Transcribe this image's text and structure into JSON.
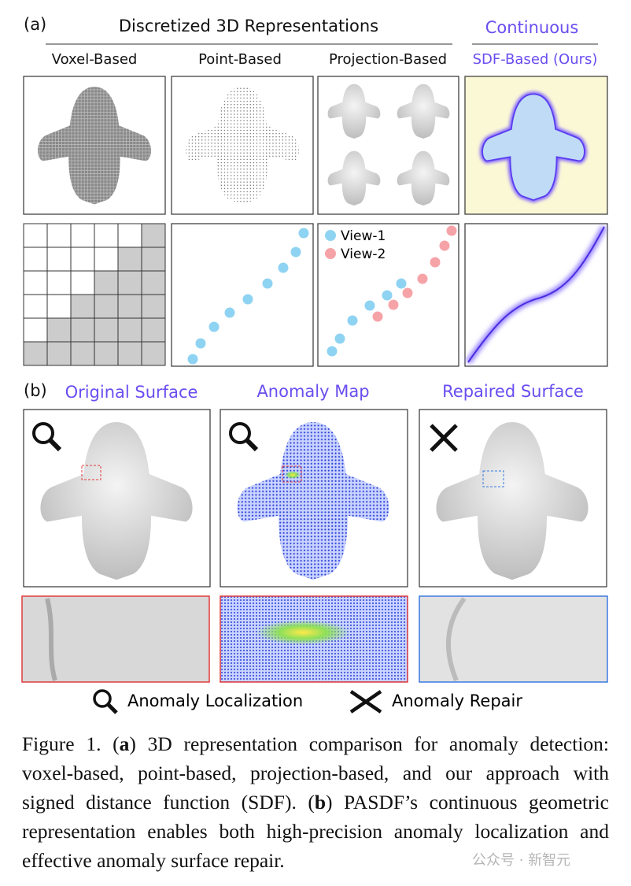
{
  "panel_a": {
    "label": "(a)",
    "group_discrete": "Discretized 3D Representations",
    "group_continuous": "Continuous",
    "columns": [
      "Voxel-Based",
      "Point-Based",
      "Projection-Based",
      "SDF-Based (Ours)"
    ],
    "legend": [
      "View-1",
      "View-2"
    ]
  },
  "panel_b": {
    "label": "(b)",
    "columns": [
      "Original Surface",
      "Anomaly Map",
      "Repaired Surface"
    ],
    "legend": [
      "Anomaly Localization",
      "Anomaly Repair"
    ]
  },
  "caption": [
    {
      "text": "Figure 1. (",
      "bold": false
    },
    {
      "text": "a",
      "bold": true
    },
    {
      "text": ") 3D representation comparison for anomaly detection: voxel-based, point-based, projection-based, and our approach with signed distance function (SDF). (",
      "bold": false
    },
    {
      "text": "b",
      "bold": true
    },
    {
      "text": ") PASDF’s continuous geometric representation enables both high-precision anomaly localization and effective anomaly surface repair.",
      "bold": false
    }
  ],
  "watermark": "公众号 · 新智元"
}
